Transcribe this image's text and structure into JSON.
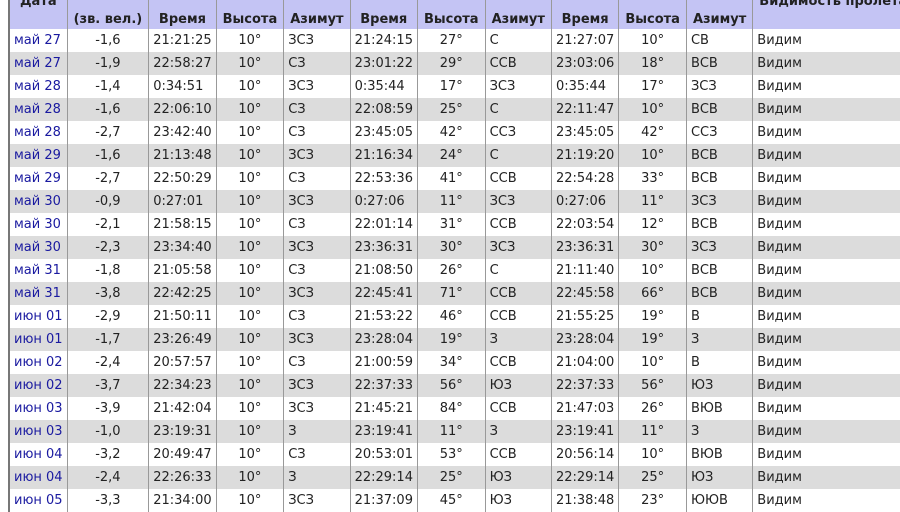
{
  "headers": [
    "Дата",
    "(зв. вел.)",
    "Время",
    "Высота",
    "Азимут",
    "Время",
    "Высота",
    "Азимут",
    "Время",
    "Высота",
    "Азимут",
    "Видимость пролета"
  ],
  "rows": [
    [
      "май 27",
      "-1,6",
      "21:21:25",
      "10°",
      "ЗСЗ",
      "21:24:15",
      "27°",
      "С",
      "21:27:07",
      "10°",
      "СВ",
      "Видим"
    ],
    [
      "май 27",
      "-1,9",
      "22:58:27",
      "10°",
      "СЗ",
      "23:01:22",
      "29°",
      "ССВ",
      "23:03:06",
      "18°",
      "ВСВ",
      "Видим"
    ],
    [
      "май 28",
      "-1,4",
      "0:34:51",
      "10°",
      "ЗСЗ",
      "0:35:44",
      "17°",
      "ЗСЗ",
      "0:35:44",
      "17°",
      "ЗСЗ",
      "Видим"
    ],
    [
      "май 28",
      "-1,6",
      "22:06:10",
      "10°",
      "СЗ",
      "22:08:59",
      "25°",
      "С",
      "22:11:47",
      "10°",
      "ВСВ",
      "Видим"
    ],
    [
      "май 28",
      "-2,7",
      "23:42:40",
      "10°",
      "СЗ",
      "23:45:05",
      "42°",
      "ССЗ",
      "23:45:05",
      "42°",
      "ССЗ",
      "Видим"
    ],
    [
      "май 29",
      "-1,6",
      "21:13:48",
      "10°",
      "ЗСЗ",
      "21:16:34",
      "24°",
      "С",
      "21:19:20",
      "10°",
      "ВСВ",
      "Видим"
    ],
    [
      "май 29",
      "-2,7",
      "22:50:29",
      "10°",
      "СЗ",
      "22:53:36",
      "41°",
      "ССВ",
      "22:54:28",
      "33°",
      "ВСВ",
      "Видим"
    ],
    [
      "май 30",
      "-0,9",
      "0:27:01",
      "10°",
      "ЗСЗ",
      "0:27:06",
      "11°",
      "ЗСЗ",
      "0:27:06",
      "11°",
      "ЗСЗ",
      "Видим"
    ],
    [
      "май 30",
      "-2,1",
      "21:58:15",
      "10°",
      "СЗ",
      "22:01:14",
      "31°",
      "ССВ",
      "22:03:54",
      "12°",
      "ВСВ",
      "Видим"
    ],
    [
      "май 30",
      "-2,3",
      "23:34:40",
      "10°",
      "ЗСЗ",
      "23:36:31",
      "30°",
      "ЗСЗ",
      "23:36:31",
      "30°",
      "ЗСЗ",
      "Видим"
    ],
    [
      "май 31",
      "-1,8",
      "21:05:58",
      "10°",
      "СЗ",
      "21:08:50",
      "26°",
      "С",
      "21:11:40",
      "10°",
      "ВСВ",
      "Видим"
    ],
    [
      "май 31",
      "-3,8",
      "22:42:25",
      "10°",
      "ЗСЗ",
      "22:45:41",
      "71°",
      "ССВ",
      "22:45:58",
      "66°",
      "ВСВ",
      "Видим"
    ],
    [
      "июн 01",
      "-2,9",
      "21:50:11",
      "10°",
      "СЗ",
      "21:53:22",
      "46°",
      "ССВ",
      "21:55:25",
      "19°",
      "В",
      "Видим"
    ],
    [
      "июн 01",
      "-1,7",
      "23:26:49",
      "10°",
      "ЗСЗ",
      "23:28:04",
      "19°",
      "З",
      "23:28:04",
      "19°",
      "З",
      "Видим"
    ],
    [
      "июн 02",
      "-2,4",
      "20:57:57",
      "10°",
      "СЗ",
      "21:00:59",
      "34°",
      "ССВ",
      "21:04:00",
      "10°",
      "В",
      "Видим"
    ],
    [
      "июн 02",
      "-3,7",
      "22:34:23",
      "10°",
      "ЗСЗ",
      "22:37:33",
      "56°",
      "ЮЗ",
      "22:37:33",
      "56°",
      "ЮЗ",
      "Видим"
    ],
    [
      "июн 03",
      "-3,9",
      "21:42:04",
      "10°",
      "ЗСЗ",
      "21:45:21",
      "84°",
      "ССВ",
      "21:47:03",
      "26°",
      "ВЮВ",
      "Видим"
    ],
    [
      "июн 03",
      "-1,0",
      "23:19:31",
      "10°",
      "З",
      "23:19:41",
      "11°",
      "З",
      "23:19:41",
      "11°",
      "З",
      "Видим"
    ],
    [
      "июн 04",
      "-3,2",
      "20:49:47",
      "10°",
      "СЗ",
      "20:53:01",
      "53°",
      "ССВ",
      "20:56:14",
      "10°",
      "ВЮВ",
      "Видим"
    ],
    [
      "июн 04",
      "-2,4",
      "22:26:33",
      "10°",
      "З",
      "22:29:14",
      "25°",
      "ЮЗ",
      "22:29:14",
      "25°",
      "ЮЗ",
      "Видим"
    ],
    [
      "июн 05",
      "-3,3",
      "21:34:00",
      "10°",
      "ЗСЗ",
      "21:37:09",
      "45°",
      "ЮЗ",
      "21:38:48",
      "23°",
      "ЮЮВ",
      "Видим"
    ]
  ],
  "colors": {
    "header_bg": "#c4c4f4",
    "alt_row_bg": "#dcdcdc",
    "date_link": "#1a1aa0"
  }
}
